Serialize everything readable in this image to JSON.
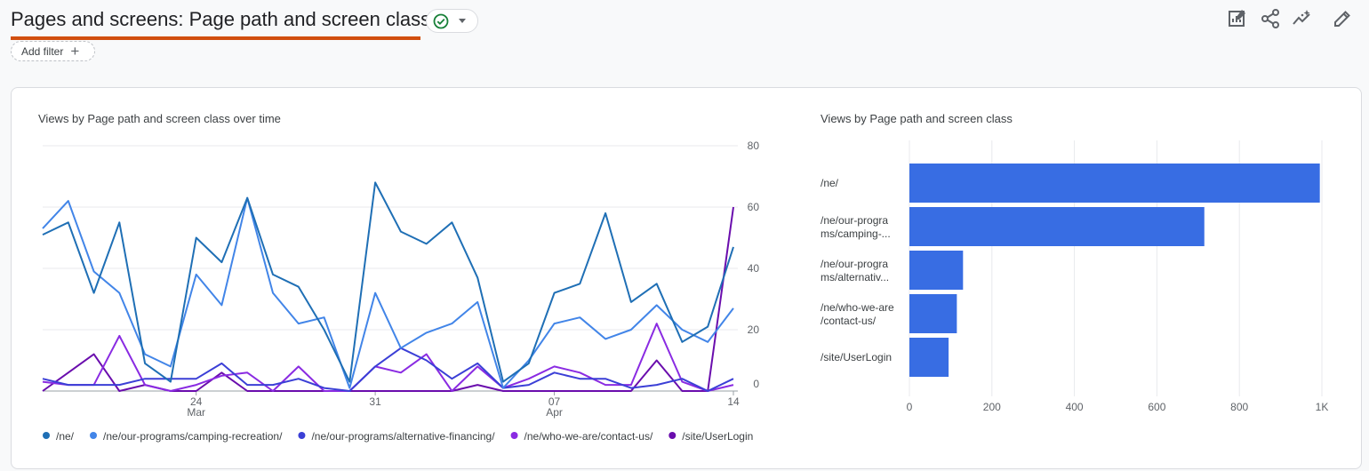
{
  "header": {
    "title": "Pages and screens: Page path and screen class",
    "add_filter_label": "Add filter"
  },
  "toolbar": {
    "icons": [
      "customize-report-icon",
      "share-icon",
      "insights-icon",
      "edit-icon"
    ]
  },
  "line_chart_title": "Views by Page path and screen class over time",
  "bar_chart_title": "Views by Page path and screen class",
  "chart_data": [
    {
      "type": "line",
      "x_ticks": [
        {
          "index": 6,
          "label": "24",
          "sub": "Mar"
        },
        {
          "index": 13,
          "label": "31",
          "sub": ""
        },
        {
          "index": 20,
          "label": "07",
          "sub": "Apr"
        },
        {
          "index": 27,
          "label": "14",
          "sub": ""
        }
      ],
      "ylim": [
        0,
        80
      ],
      "y_ticks": [
        0,
        20,
        40,
        60,
        80
      ],
      "legend_position": "bottom",
      "series": [
        {
          "name": "/ne/",
          "color": "#1f6fb5",
          "values": [
            51,
            55,
            32,
            55,
            9,
            3,
            50,
            42,
            63,
            38,
            34,
            20,
            3,
            68,
            52,
            48,
            55,
            37,
            3,
            9,
            32,
            35,
            58,
            29,
            35,
            16,
            21,
            47
          ]
        },
        {
          "name": "/ne/our-programs/camping-recreation/",
          "color": "#4285e8",
          "values": [
            53,
            62,
            39,
            32,
            12,
            8,
            38,
            28,
            63,
            32,
            22,
            24,
            1,
            32,
            14,
            19,
            22,
            29,
            1,
            10,
            22,
            24,
            17,
            20,
            28,
            20,
            16,
            27
          ]
        },
        {
          "name": "/ne/our-programs/alternative-financing/",
          "color": "#3b3fd6",
          "values": [
            4,
            2,
            2,
            2,
            4,
            4,
            4,
            9,
            2,
            2,
            4,
            1,
            0,
            8,
            14,
            10,
            4,
            9,
            1,
            2,
            6,
            4,
            4,
            1,
            2,
            4,
            0,
            4
          ]
        },
        {
          "name": "/ne/who-we-are/contact-us/",
          "color": "#8a2be2",
          "values": [
            3,
            2,
            2,
            18,
            2,
            0,
            2,
            5,
            6,
            0,
            8,
            0,
            0,
            8,
            6,
            12,
            0,
            8,
            1,
            4,
            8,
            6,
            2,
            2,
            22,
            3,
            0,
            2
          ]
        },
        {
          "name": "/site/UserLogin",
          "color": "#6a0dad",
          "values": [
            0,
            6,
            12,
            0,
            2,
            0,
            0,
            6,
            0,
            0,
            0,
            0,
            0,
            0,
            0,
            0,
            0,
            2,
            0,
            0,
            0,
            0,
            0,
            0,
            10,
            0,
            0,
            60
          ]
        }
      ]
    },
    {
      "type": "bar",
      "orientation": "horizontal",
      "categories": [
        [
          "/ne/"
        ],
        [
          "/ne/our-progra",
          "ms/camping-..."
        ],
        [
          "/ne/our-progra",
          "ms/alternativ..."
        ],
        [
          "/ne/who-we-are",
          "/contact-us/"
        ],
        [
          "/site/UserLogin"
        ]
      ],
      "values": [
        995,
        715,
        130,
        115,
        95
      ],
      "xlim": [
        0,
        1000
      ],
      "x_ticks": [
        {
          "v": 0,
          "label": "0"
        },
        {
          "v": 200,
          "label": "200"
        },
        {
          "v": 400,
          "label": "400"
        },
        {
          "v": 600,
          "label": "600"
        },
        {
          "v": 800,
          "label": "800"
        },
        {
          "v": 1000,
          "label": "1K"
        }
      ],
      "bar_color": "#386de3",
      "grid": true
    }
  ]
}
